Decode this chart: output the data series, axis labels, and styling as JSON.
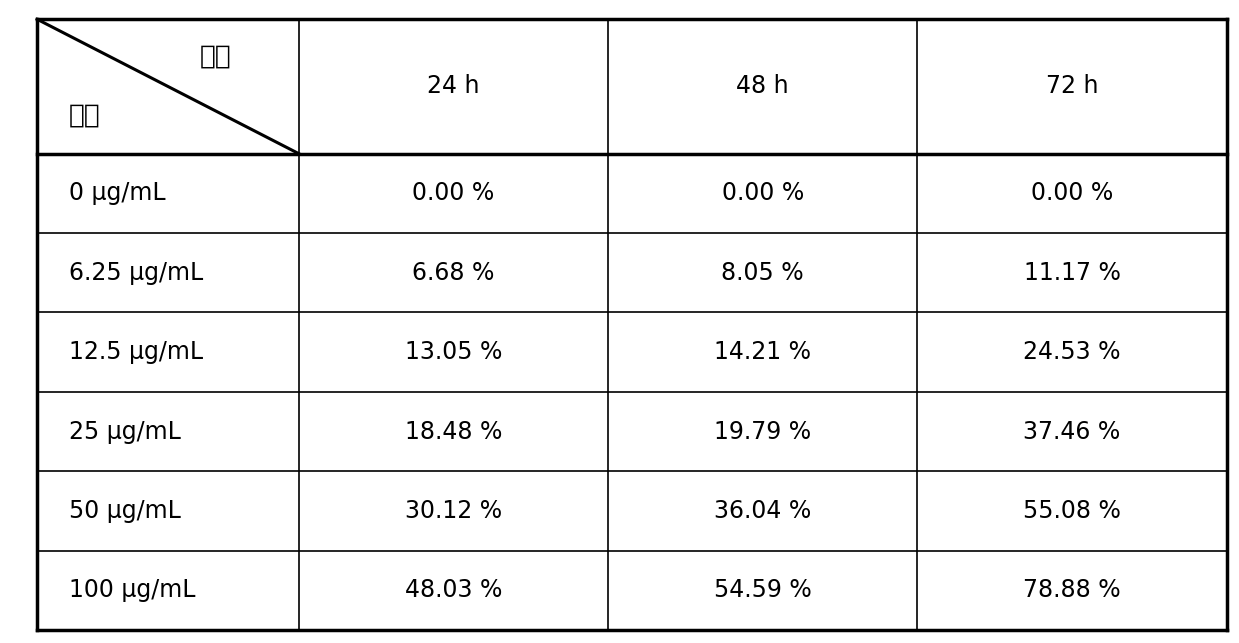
{
  "header_sub_top": "时间",
  "header_sub_bottom": "浓度",
  "col_headers": [
    "24 h",
    "48 h",
    "72 h"
  ],
  "rows": [
    [
      "0 μg/mL",
      "0.00 %",
      "0.00 %",
      "0.00 %"
    ],
    [
      "6.25 μg/mL",
      "6.68 %",
      "8.05 %",
      "11.17 %"
    ],
    [
      "12.5 μg/mL",
      "13.05 %",
      "14.21 %",
      "24.53 %"
    ],
    [
      "25 μg/mL",
      "18.48 %",
      "19.79 %",
      "37.46 %"
    ],
    [
      "50 μg/mL",
      "30.12 %",
      "36.04 %",
      "55.08 %"
    ],
    [
      "100 μg/mL",
      "48.03 %",
      "54.59 %",
      "78.88 %"
    ]
  ],
  "background_color": "#ffffff",
  "text_color": "#000000",
  "border_color": "#000000",
  "font_size": 17,
  "header_font_size": 17,
  "outer_lw": 2.5,
  "inner_lw": 1.2,
  "diag_lw": 2.2,
  "fig_width": 12.39,
  "fig_height": 6.43,
  "dpi": 100
}
